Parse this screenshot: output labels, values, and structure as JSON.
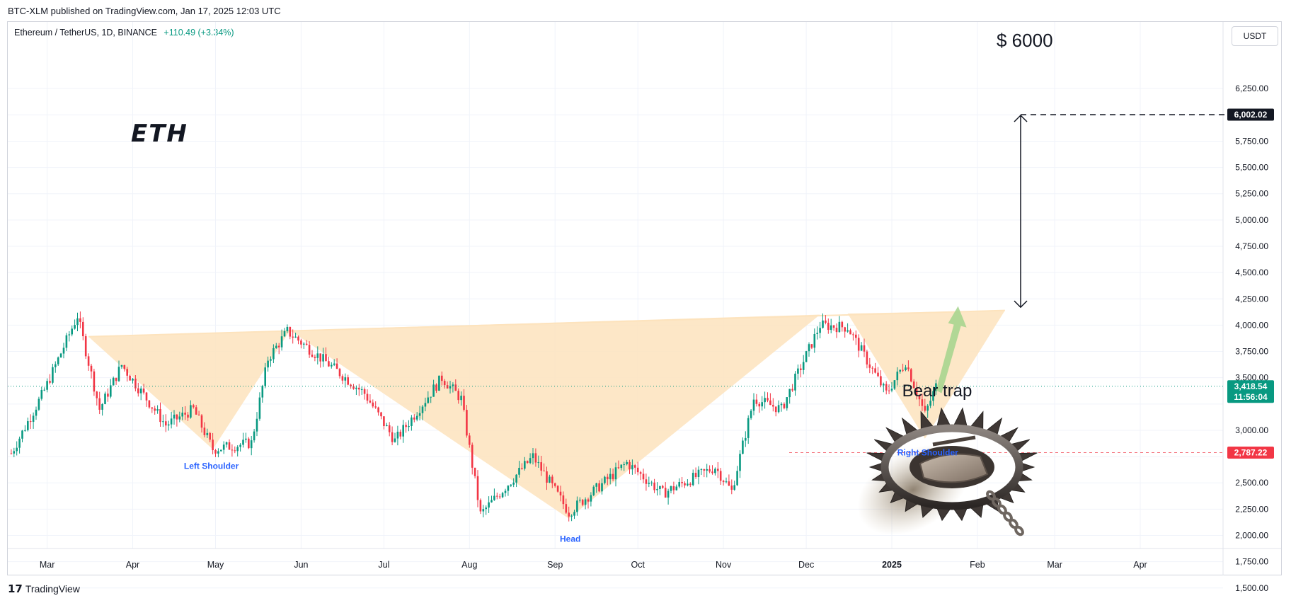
{
  "header": {
    "published": "BTC-XLM published on TradingView.com, Jan 17, 2025 12:03 UTC",
    "symbol": "Ethereum / TetherUS, 1D, BINANCE",
    "change": "+110.49 (+3.34%)",
    "currency_button": "USDT"
  },
  "footer": {
    "brand": "TradingView"
  },
  "colors": {
    "up": "#089981",
    "down": "#f23645",
    "pattern_fill": "#fde3bd",
    "arrow": "#a3d48c"
  },
  "chart_data": {
    "type": "candlestick",
    "title": "ETH",
    "target_label": "$ 6000",
    "x_ticks": [
      "Mar",
      "Apr",
      "May",
      "Jun",
      "Jul",
      "Aug",
      "Sep",
      "Oct",
      "Nov",
      "Dec",
      "2025",
      "Feb",
      "Mar",
      "Apr"
    ],
    "y_ticks": [
      "6,250.00",
      "6,000.00",
      "5,750.00",
      "5,500.00",
      "5,250.00",
      "5,000.00",
      "4,750.00",
      "4,500.00",
      "4,250.00",
      "4,000.00",
      "3,750.00",
      "3,500.00",
      "3,000.00",
      "2,500.00",
      "2,250.00",
      "2,000.00",
      "1,750.00",
      "1,500.00"
    ],
    "ylim": [
      1440,
      6330
    ],
    "price_labels": [
      {
        "value": 6002.02,
        "text": "6,002.02",
        "style": "dark"
      },
      {
        "value": 3418.54,
        "text": "3,418.54",
        "sub": "11:56:04",
        "style": "green"
      },
      {
        "value": 2787.22,
        "text": "2,787.22",
        "style": "red"
      }
    ],
    "annotations": [
      "Left Shoulder",
      "Head",
      "Right Shoulder",
      "Bear trap"
    ],
    "key_points": [
      {
        "date": "2024-03-12",
        "price": 4090
      },
      {
        "date": "2024-04-30",
        "price": 2820
      },
      {
        "date": "2024-05-27",
        "price": 3980
      },
      {
        "date": "2024-08-05",
        "price": 2110
      },
      {
        "date": "2024-09-06",
        "price": 2160
      },
      {
        "date": "2024-12-06",
        "price": 4100
      },
      {
        "date": "2024-12-16",
        "price": 4110
      },
      {
        "date": "2025-01-13",
        "price": 2920
      },
      {
        "date": "2025-01-17",
        "price": 3418.54
      }
    ]
  }
}
